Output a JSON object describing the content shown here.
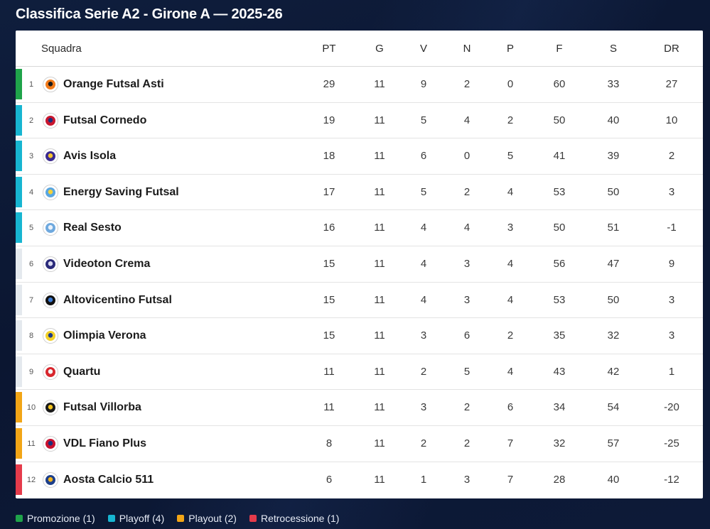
{
  "title": "Classifica Serie A2 - Girone A — 2025-26",
  "columns": {
    "squadra": "Squadra",
    "pt": "PT",
    "g": "G",
    "v": "V",
    "n": "N",
    "p": "P",
    "f": "F",
    "s": "S",
    "dr": "DR"
  },
  "zone_colors": {
    "promozione": "#1fa34a",
    "playoff": "#17b5d1",
    "none": "#e4e9ee",
    "playout": "#f2a516",
    "retrocessione": "#e53b4b"
  },
  "rows": [
    {
      "pos": "1",
      "team": "Orange Futsal Asti",
      "pt": "29",
      "g": "11",
      "v": "9",
      "n": "2",
      "p": "0",
      "f": "60",
      "s": "33",
      "dr": "27",
      "zone": "promozione",
      "logo_colors": [
        "#f27b1a",
        "#1a1a1a"
      ]
    },
    {
      "pos": "2",
      "team": "Futsal Cornedo",
      "pt": "19",
      "g": "11",
      "v": "5",
      "n": "4",
      "p": "2",
      "f": "50",
      "s": "40",
      "dr": "10",
      "zone": "playoff",
      "logo_colors": [
        "#c8162e",
        "#1d2f7a"
      ]
    },
    {
      "pos": "3",
      "team": "Avis Isola",
      "pt": "18",
      "g": "11",
      "v": "6",
      "n": "0",
      "p": "5",
      "f": "41",
      "s": "39",
      "dr": "2",
      "zone": "playoff",
      "logo_colors": [
        "#3b2a8f",
        "#f4c430"
      ]
    },
    {
      "pos": "4",
      "team": "Energy Saving Futsal",
      "pt": "17",
      "g": "11",
      "v": "5",
      "n": "2",
      "p": "4",
      "f": "53",
      "s": "50",
      "dr": "3",
      "zone": "playoff",
      "logo_colors": [
        "#5aa6e0",
        "#f2d13a"
      ]
    },
    {
      "pos": "5",
      "team": "Real Sesto",
      "pt": "16",
      "g": "11",
      "v": "4",
      "n": "4",
      "p": "3",
      "f": "50",
      "s": "51",
      "dr": "-1",
      "zone": "playoff",
      "logo_colors": [
        "#6fa9de",
        "#e9f1fb"
      ]
    },
    {
      "pos": "6",
      "team": "Videoton Crema",
      "pt": "15",
      "g": "11",
      "v": "4",
      "n": "3",
      "p": "4",
      "f": "56",
      "s": "47",
      "dr": "9",
      "zone": "none",
      "logo_colors": [
        "#2a2a7a",
        "#d9d9ef"
      ]
    },
    {
      "pos": "7",
      "team": "Altovicentino Futsal",
      "pt": "15",
      "g": "11",
      "v": "4",
      "n": "3",
      "p": "4",
      "f": "53",
      "s": "50",
      "dr": "3",
      "zone": "none",
      "logo_colors": [
        "#111111",
        "#3c7bd4"
      ]
    },
    {
      "pos": "8",
      "team": "Olimpia Verona",
      "pt": "15",
      "g": "11",
      "v": "3",
      "n": "6",
      "p": "2",
      "f": "35",
      "s": "32",
      "dr": "3",
      "zone": "none",
      "logo_colors": [
        "#f2d12a",
        "#1f3c8a"
      ]
    },
    {
      "pos": "9",
      "team": "Quartu",
      "pt": "11",
      "g": "11",
      "v": "2",
      "n": "5",
      "p": "4",
      "f": "43",
      "s": "42",
      "dr": "1",
      "zone": "none",
      "logo_colors": [
        "#d8262d",
        "#f5f5f5"
      ]
    },
    {
      "pos": "10",
      "team": "Futsal Villorba",
      "pt": "11",
      "g": "11",
      "v": "3",
      "n": "2",
      "p": "6",
      "f": "34",
      "s": "54",
      "dr": "-20",
      "zone": "playout",
      "logo_colors": [
        "#1a1a1a",
        "#f2c21b"
      ]
    },
    {
      "pos": "11",
      "team": "VDL Fiano Plus",
      "pt": "8",
      "g": "11",
      "v": "2",
      "n": "2",
      "p": "7",
      "f": "32",
      "s": "57",
      "dr": "-25",
      "zone": "playout",
      "logo_colors": [
        "#c8102e",
        "#1b2f7a"
      ]
    },
    {
      "pos": "12",
      "team": "Aosta Calcio 511",
      "pt": "6",
      "g": "11",
      "v": "1",
      "n": "3",
      "p": "7",
      "f": "28",
      "s": "40",
      "dr": "-12",
      "zone": "retrocessione",
      "logo_colors": [
        "#1d3f8a",
        "#f1b31c"
      ]
    }
  ],
  "legend": [
    {
      "label": "Promozione (1)",
      "zone": "promozione"
    },
    {
      "label": "Playoff (4)",
      "zone": "playoff"
    },
    {
      "label": "Playout (2)",
      "zone": "playout"
    },
    {
      "label": "Retrocessione (1)",
      "zone": "retrocessione"
    }
  ]
}
